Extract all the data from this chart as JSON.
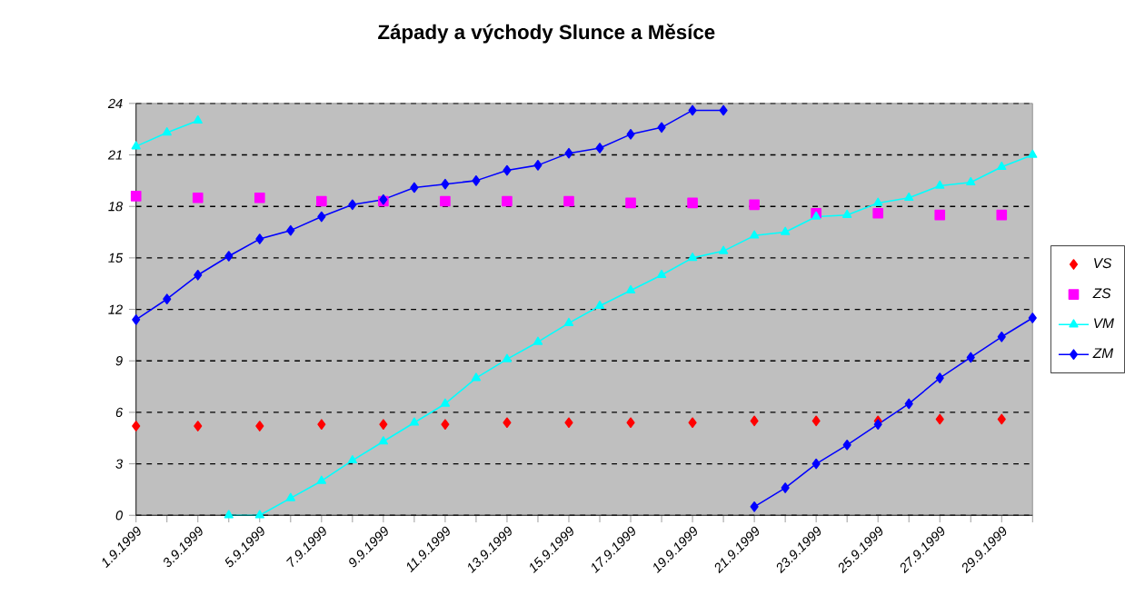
{
  "chart_data": {
    "type": "line",
    "title": "Západy a východy Slunce a Měsíce",
    "categories": [
      "1.9.1999",
      null,
      "3.9.1999",
      null,
      "5.9.1999",
      null,
      "7.9.1999",
      null,
      "9.9.1999",
      null,
      "11.9.1999",
      null,
      "13.9.1999",
      null,
      "15.9.1999",
      null,
      "17.9.1999",
      null,
      "19.9.1999",
      null,
      "21.9.1999",
      null,
      "23.9.1999",
      null,
      "25.9.1999",
      null,
      "27.9.1999",
      null,
      "29.9.1999",
      null
    ],
    "series": [
      {
        "name": "VS",
        "type": "scatter",
        "color": "#ff0000",
        "marker": "diamond",
        "values": [
          5.2,
          null,
          5.2,
          null,
          5.2,
          null,
          5.3,
          null,
          5.3,
          null,
          5.3,
          null,
          5.4,
          null,
          5.4,
          null,
          5.4,
          null,
          5.4,
          null,
          5.5,
          null,
          5.5,
          null,
          5.5,
          null,
          5.6,
          null,
          5.6,
          null
        ]
      },
      {
        "name": "ZS",
        "type": "scatter",
        "color": "#ff00ff",
        "marker": "square",
        "values": [
          18.6,
          null,
          18.5,
          null,
          18.5,
          null,
          18.3,
          null,
          18.3,
          null,
          18.3,
          null,
          18.3,
          null,
          18.3,
          null,
          18.2,
          null,
          18.2,
          null,
          18.1,
          null,
          17.6,
          null,
          17.6,
          null,
          17.5,
          null,
          17.5,
          null
        ]
      },
      {
        "name": "VM",
        "color": "#00ffff",
        "marker": "triangle",
        "values": [
          21.5,
          22.3,
          23.0,
          0,
          0,
          1.0,
          2.0,
          3.2,
          4.3,
          5.4,
          6.5,
          8.0,
          9.1,
          10.1,
          11.2,
          12.2,
          13.1,
          14.0,
          15.0,
          15.4,
          16.3,
          16.5,
          17.4,
          17.5,
          18.2,
          18.5,
          19.2,
          19.4,
          20.3,
          21.0
        ]
      },
      {
        "name": "ZM",
        "color": "#0000ff",
        "marker": "diamond",
        "values": [
          11.4,
          12.6,
          14.0,
          15.1,
          16.1,
          16.6,
          17.4,
          18.1,
          18.4,
          19.1,
          19.3,
          19.5,
          20.1,
          20.4,
          21.1,
          21.4,
          22.2,
          22.6,
          23.6,
          23.6,
          0.5,
          1.6,
          3.0,
          4.1,
          5.3,
          6.5,
          8.0,
          9.2,
          10.4,
          11.5
        ]
      }
    ],
    "ylim": [
      0,
      24
    ],
    "yticks": [
      0,
      3,
      6,
      9,
      12,
      15,
      18,
      21,
      24
    ],
    "grid": "y",
    "legend": "right",
    "line_style": "solid"
  }
}
